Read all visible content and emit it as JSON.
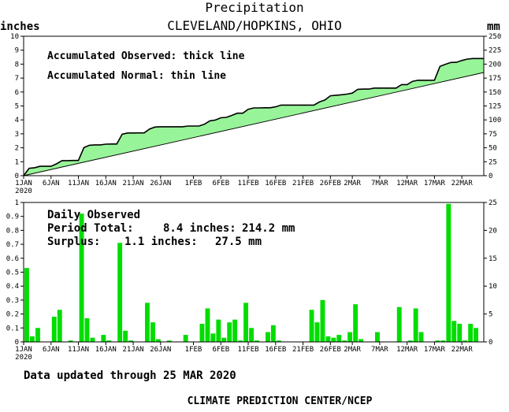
{
  "header": {
    "title": "Precipitation",
    "station": "CLEVELAND/HOPKINS, OHIO",
    "unit_left": "inches",
    "unit_right": "mm"
  },
  "footer": {
    "updated": "Data updated through 25 MAR 2020",
    "credit": "CLIMATE PREDICTION CENTER/NCEP"
  },
  "colors": {
    "accumulated_fill": "#98f498",
    "daily_bar": "#00dd00",
    "line": "#000000"
  },
  "chart_data": [
    {
      "type": "area",
      "annotations": [
        "Accumulated Observed: thick line",
        "Accumulated Normal: thin line"
      ],
      "xlabel": "",
      "ylabel": "inches",
      "ylabel_right": "mm",
      "x_range_days": [
        1,
        85
      ],
      "ylim": [
        0,
        10
      ],
      "ylim_right": [
        0,
        250
      ],
      "y_ticks": [
        "0",
        "1",
        "2",
        "3",
        "4",
        "5",
        "6",
        "7",
        "8",
        "9",
        "10"
      ],
      "y_ticks_right": [
        "0",
        "25",
        "50",
        "75",
        "100",
        "125",
        "150",
        "175",
        "200",
        "225",
        "250"
      ],
      "x_ticks": [
        {
          "day": 1,
          "label": "1JAN"
        },
        {
          "day": 6,
          "label": "6JAN"
        },
        {
          "day": 11,
          "label": "11JAN"
        },
        {
          "day": 16,
          "label": "16JAN"
        },
        {
          "day": 21,
          "label": "21JAN"
        },
        {
          "day": 26,
          "label": "26JAN"
        },
        {
          "day": 32,
          "label": "1FEB"
        },
        {
          "day": 37,
          "label": "6FEB"
        },
        {
          "day": 42,
          "label": "11FEB"
        },
        {
          "day": 47,
          "label": "16FEB"
        },
        {
          "day": 52,
          "label": "21FEB"
        },
        {
          "day": 57,
          "label": "26FEB"
        },
        {
          "day": 61,
          "label": "2MAR"
        },
        {
          "day": 66,
          "label": "7MAR"
        },
        {
          "day": 71,
          "label": "12MAR"
        },
        {
          "day": 76,
          "label": "17MAR"
        },
        {
          "day": 81,
          "label": "22MAR"
        }
      ],
      "year_label": "2020",
      "series": [
        {
          "name": "Accumulated Observed",
          "x": [
            1,
            2,
            3,
            4,
            5,
            6,
            7,
            8,
            9,
            10,
            11,
            12,
            13,
            14,
            15,
            16,
            17,
            18,
            19,
            20,
            21,
            22,
            23,
            24,
            25,
            26,
            27,
            28,
            29,
            30,
            31,
            32,
            33,
            34,
            35,
            36,
            37,
            38,
            39,
            40,
            41,
            42,
            43,
            44,
            45,
            46,
            47,
            48,
            49,
            50,
            51,
            52,
            53,
            54,
            55,
            56,
            57,
            58,
            59,
            60,
            61,
            62,
            63,
            64,
            65,
            66,
            67,
            68,
            69,
            70,
            71,
            72,
            73,
            74,
            75,
            76,
            77,
            78,
            79,
            80,
            81,
            82,
            83,
            84,
            85
          ],
          "values": [
            0.0,
            0.53,
            0.57,
            0.67,
            0.67,
            0.67,
            0.85,
            1.08,
            1.08,
            1.09,
            1.09,
            2.01,
            2.18,
            2.21,
            2.21,
            2.26,
            2.27,
            2.27,
            2.98,
            3.06,
            3.06,
            3.07,
            3.07,
            3.35,
            3.49,
            3.51,
            3.51,
            3.51,
            3.51,
            3.51,
            3.56,
            3.56,
            3.56,
            3.69,
            3.93,
            3.99,
            4.15,
            4.18,
            4.32,
            4.48,
            4.48,
            4.76,
            4.86,
            4.86,
            4.87,
            4.87,
            4.94,
            5.06,
            5.06,
            5.06,
            5.06,
            5.06,
            5.06,
            5.06,
            5.29,
            5.43,
            5.73,
            5.77,
            5.8,
            5.85,
            5.92,
            6.19,
            6.21,
            6.21,
            6.28,
            6.28,
            6.28,
            6.28,
            6.28,
            6.53,
            6.53,
            6.77,
            6.84,
            6.84,
            6.84,
            6.85,
            7.84,
            7.99,
            8.12,
            8.13,
            8.26,
            8.36,
            8.4,
            8.4,
            8.4
          ]
        },
        {
          "name": "Accumulated Normal",
          "x": [
            1,
            85
          ],
          "values": [
            0.0,
            7.4
          ]
        }
      ]
    },
    {
      "type": "bar",
      "annotations": [
        "Daily Observed",
        "Period Total:",
        "8.4 inches:",
        "214.2 mm",
        "Surplus:",
        "1.1 inches:",
        "27.5 mm"
      ],
      "xlabel": "",
      "ylabel": "inches",
      "ylabel_right": "mm",
      "x_range_days": [
        1,
        85
      ],
      "ylim": [
        0,
        1.0
      ],
      "ylim_right": [
        0,
        25
      ],
      "y_ticks": [
        "0",
        "0.1",
        "0.2",
        "0.3",
        "0.4",
        "0.5",
        "0.6",
        "0.7",
        "0.8",
        "0.9",
        "1"
      ],
      "y_ticks_right": [
        "0",
        "5",
        "10",
        "15",
        "20",
        "25"
      ],
      "x_ticks": [
        {
          "day": 1,
          "label": "1JAN"
        },
        {
          "day": 6,
          "label": "6JAN"
        },
        {
          "day": 11,
          "label": "11JAN"
        },
        {
          "day": 16,
          "label": "16JAN"
        },
        {
          "day": 21,
          "label": "21JAN"
        },
        {
          "day": 26,
          "label": "26JAN"
        },
        {
          "day": 32,
          "label": "1FEB"
        },
        {
          "day": 37,
          "label": "6FEB"
        },
        {
          "day": 42,
          "label": "11FEB"
        },
        {
          "day": 47,
          "label": "16FEB"
        },
        {
          "day": 52,
          "label": "21FEB"
        },
        {
          "day": 57,
          "label": "26FEB"
        },
        {
          "day": 61,
          "label": "2MAR"
        },
        {
          "day": 66,
          "label": "7MAR"
        },
        {
          "day": 71,
          "label": "12MAR"
        },
        {
          "day": 76,
          "label": "17MAR"
        },
        {
          "day": 81,
          "label": "22MAR"
        }
      ],
      "year_label": "2020",
      "series": [
        {
          "name": "Daily Observed",
          "x": [
            1,
            2,
            3,
            6,
            7,
            9,
            11,
            12,
            13,
            15,
            16,
            18,
            19,
            20,
            23,
            24,
            25,
            27,
            30,
            33,
            34,
            35,
            36,
            37,
            38,
            39,
            40,
            41,
            42,
            43,
            45,
            46,
            47,
            53,
            54,
            55,
            56,
            57,
            58,
            59,
            60,
            61,
            62,
            65,
            69,
            71,
            72,
            73,
            76,
            77,
            78,
            79,
            80,
            81,
            82,
            83
          ],
          "values": [
            0.53,
            0.04,
            0.1,
            0.18,
            0.23,
            0.01,
            0.92,
            0.17,
            0.03,
            0.05,
            0.01,
            0.71,
            0.08,
            0.01,
            0.28,
            0.14,
            0.02,
            0.01,
            0.05,
            0.13,
            0.24,
            0.06,
            0.16,
            0.03,
            0.14,
            0.16,
            0.01,
            0.28,
            0.1,
            0.01,
            0.07,
            0.12,
            0.01,
            0.23,
            0.14,
            0.3,
            0.04,
            0.03,
            0.05,
            0.01,
            0.07,
            0.27,
            0.02,
            0.07,
            0.25,
            0.01,
            0.24,
            0.07,
            0.01,
            0.01,
            0.99,
            0.15,
            0.13,
            0.01,
            0.13,
            0.1
          ]
        }
      ]
    }
  ]
}
